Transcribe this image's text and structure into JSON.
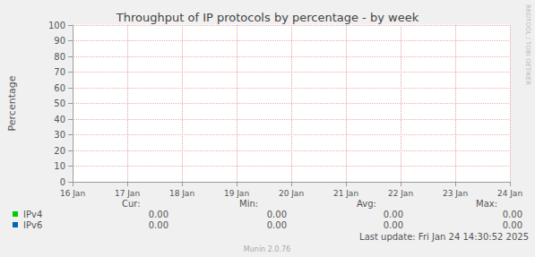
{
  "chart_data": {
    "type": "line",
    "title": "Throughput of IP protocols by percentage - by week",
    "y_label": "Percentage",
    "categories": [
      "16 Jan",
      "17 Jan",
      "18 Jan",
      "19 Jan",
      "20 Jan",
      "21 Jan",
      "22 Jan",
      "23 Jan",
      "24 Jan"
    ],
    "series": [
      {
        "name": "IPv4",
        "color": "#00cc00",
        "values": [
          null,
          null,
          null,
          null,
          null,
          null,
          null,
          null,
          null
        ],
        "stats": [
          "0.00",
          "0.00",
          "0.00",
          "0.00"
        ]
      },
      {
        "name": "IPv6",
        "color": "#0066b3",
        "values": [
          null,
          null,
          null,
          null,
          null,
          null,
          null,
          null,
          null
        ],
        "stats": [
          "0.00",
          "0.00",
          "0.00",
          "0.00"
        ]
      }
    ],
    "stats_columns": [
      "Cur:",
      "Min:",
      "Avg:",
      "Max:"
    ],
    "ylim": [
      0,
      100
    ],
    "yticks": [
      0,
      10,
      20,
      30,
      40,
      50,
      60,
      70,
      80,
      90,
      100
    ],
    "grid": true,
    "last_update": "Last update: Fri Jan 24 14:30:52 2025",
    "footer": "Munin 2.0.76",
    "side_text": "RRDTOOL / TOBI OETIKER"
  }
}
